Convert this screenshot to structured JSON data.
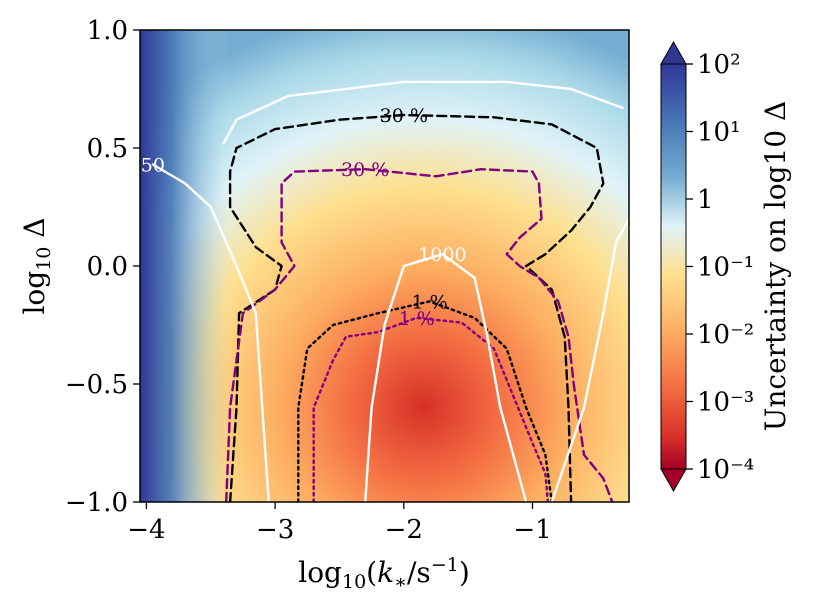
{
  "chart_data": {
    "type": "heatmap",
    "xlabel": "log10(k*/s^-1)",
    "ylabel": "log10 Δ",
    "xlim": [
      -4.05,
      -0.25
    ],
    "ylim": [
      -1.0,
      1.0
    ],
    "x_ticks": [
      {
        "value": -4,
        "label": "−4"
      },
      {
        "value": -3,
        "label": "−3"
      },
      {
        "value": -2,
        "label": "−2"
      },
      {
        "value": -1,
        "label": "−1"
      }
    ],
    "y_ticks": [
      {
        "value": 1.0,
        "label": "1.0"
      },
      {
        "value": 0.5,
        "label": "0.5"
      },
      {
        "value": 0.0,
        "label": "0.0"
      },
      {
        "value": -0.5,
        "label": "−0.5"
      },
      {
        "value": -1.0,
        "label": "−1.0"
      }
    ],
    "colorbar": {
      "label": "Uncertainty on log10 Δ",
      "scale": "log",
      "range": [
        0.0001,
        100
      ],
      "colormap": "RdYlBu",
      "ticks": [
        {
          "value": 100,
          "label": "10²"
        },
        {
          "value": 10,
          "label": "10¹"
        },
        {
          "value": 1,
          "label": "1"
        },
        {
          "value": 0.1,
          "label": "10⁻¹"
        },
        {
          "value": 0.01,
          "label": "10⁻²"
        },
        {
          "value": 0.001,
          "label": "10⁻³"
        },
        {
          "value": 0.0001,
          "label": "10⁻⁴"
        }
      ]
    },
    "contours": [
      {
        "label": "30 %",
        "color": "#000000",
        "style": "dashed",
        "points": [
          [
            -3.35,
            -1.0
          ],
          [
            -3.3,
            -0.6
          ],
          [
            -3.28,
            -0.2
          ],
          [
            -3.0,
            -0.1
          ],
          [
            -2.95,
            0.0
          ],
          [
            -3.15,
            0.08
          ],
          [
            -3.35,
            0.25
          ],
          [
            -3.35,
            0.4
          ],
          [
            -3.3,
            0.5
          ],
          [
            -3.0,
            0.58
          ],
          [
            -2.5,
            0.62
          ],
          [
            -2.0,
            0.64
          ],
          [
            -1.3,
            0.63
          ],
          [
            -0.85,
            0.6
          ],
          [
            -0.5,
            0.5
          ],
          [
            -0.45,
            0.35
          ],
          [
            -0.55,
            0.25
          ],
          [
            -0.7,
            0.15
          ],
          [
            -0.9,
            0.05
          ],
          [
            -1.05,
            0.0
          ],
          [
            -0.85,
            -0.1
          ],
          [
            -0.75,
            -0.3
          ],
          [
            -0.72,
            -0.6
          ],
          [
            -0.7,
            -1.0
          ]
        ]
      },
      {
        "label": "30 %",
        "color": "#800080",
        "style": "dashed",
        "points": [
          [
            -3.38,
            -1.0
          ],
          [
            -3.35,
            -0.6
          ],
          [
            -3.25,
            -0.2
          ],
          [
            -3.0,
            -0.1
          ],
          [
            -2.85,
            0.0
          ],
          [
            -2.95,
            0.1
          ],
          [
            -2.95,
            0.25
          ],
          [
            -2.95,
            0.35
          ],
          [
            -2.85,
            0.4
          ],
          [
            -2.3,
            0.41
          ],
          [
            -1.75,
            0.38
          ],
          [
            -1.4,
            0.41
          ],
          [
            -1.0,
            0.4
          ],
          [
            -0.95,
            0.35
          ],
          [
            -0.93,
            0.2
          ],
          [
            -1.1,
            0.12
          ],
          [
            -1.2,
            0.05
          ],
          [
            -1.1,
            0.0
          ],
          [
            -0.95,
            -0.05
          ],
          [
            -0.8,
            -0.15
          ],
          [
            -0.72,
            -0.3
          ],
          [
            -0.68,
            -0.5
          ],
          [
            -0.6,
            -0.8
          ],
          [
            -0.45,
            -0.9
          ],
          [
            -0.38,
            -1.0
          ]
        ]
      },
      {
        "label": "1 %",
        "color": "#000000",
        "style": "dotted",
        "points": [
          [
            -2.82,
            -1.0
          ],
          [
            -2.82,
            -0.6
          ],
          [
            -2.75,
            -0.35
          ],
          [
            -2.55,
            -0.25
          ],
          [
            -2.2,
            -0.2
          ],
          [
            -1.8,
            -0.15
          ],
          [
            -1.45,
            -0.22
          ],
          [
            -1.2,
            -0.35
          ],
          [
            -1.05,
            -0.6
          ],
          [
            -0.9,
            -0.8
          ],
          [
            -0.85,
            -1.0
          ]
        ]
      },
      {
        "label": "1 %",
        "color": "#800080",
        "style": "dotted",
        "points": [
          [
            -2.7,
            -1.0
          ],
          [
            -2.7,
            -0.6
          ],
          [
            -2.55,
            -0.4
          ],
          [
            -2.45,
            -0.3
          ],
          [
            -2.2,
            -0.28
          ],
          [
            -1.9,
            -0.22
          ],
          [
            -1.55,
            -0.24
          ],
          [
            -1.3,
            -0.35
          ],
          [
            -1.15,
            -0.55
          ],
          [
            -1.0,
            -0.75
          ],
          [
            -0.9,
            -0.88
          ],
          [
            -0.88,
            -1.0
          ]
        ]
      },
      {
        "label": "50",
        "color": "#ffffff",
        "style": "solid",
        "points": [
          [
            -3.95,
            0.43
          ],
          [
            -3.7,
            0.35
          ],
          [
            -3.5,
            0.25
          ],
          [
            -3.3,
            0.0
          ],
          [
            -3.15,
            -0.2
          ],
          [
            -3.05,
            -1.0
          ]
        ]
      },
      {
        "label": "",
        "color": "#ffffff",
        "style": "solid",
        "points": [
          [
            -3.4,
            0.52
          ],
          [
            -3.3,
            0.62
          ],
          [
            -2.9,
            0.72
          ],
          [
            -2.0,
            0.78
          ],
          [
            -1.2,
            0.78
          ],
          [
            -0.7,
            0.75
          ],
          [
            -0.3,
            0.67
          ]
        ]
      },
      {
        "label": "1000",
        "color": "#ffffff",
        "style": "solid",
        "points": [
          [
            -2.3,
            -1.0
          ],
          [
            -2.25,
            -0.6
          ],
          [
            -2.15,
            -0.25
          ],
          [
            -2.0,
            0.0
          ],
          [
            -1.7,
            0.05
          ],
          [
            -1.45,
            -0.05
          ],
          [
            -1.35,
            -0.3
          ],
          [
            -1.25,
            -0.6
          ],
          [
            -1.05,
            -1.0
          ]
        ]
      },
      {
        "label": "",
        "color": "#ffffff",
        "style": "solid",
        "points": [
          [
            -0.85,
            -1.0
          ],
          [
            -0.6,
            -0.6
          ],
          [
            -0.45,
            -0.2
          ],
          [
            -0.35,
            0.1
          ],
          [
            -0.25,
            0.2
          ]
        ]
      }
    ]
  }
}
